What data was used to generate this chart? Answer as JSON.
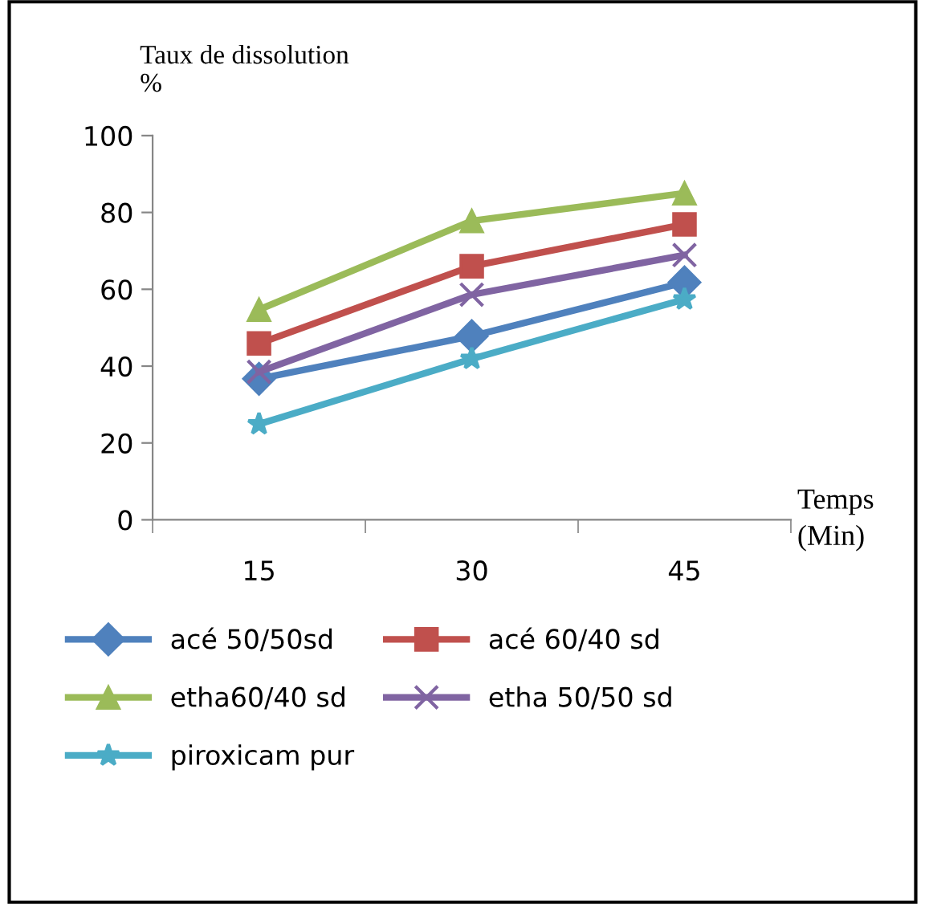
{
  "chart_data": {
    "type": "line",
    "ylabel": "Taux de dissolution\n%",
    "xlabel": "Temps\n(Min)",
    "categories": [
      "15",
      "30",
      "45"
    ],
    "ylim": [
      0,
      100
    ],
    "yticks": [
      0,
      20,
      40,
      60,
      80,
      100
    ],
    "grid": false,
    "legend": "bottom",
    "line_style": "solid",
    "series": [
      {
        "name": "acé 50/50sd",
        "color": "#4f81bd",
        "marker": "diamond",
        "values": [
          36.7,
          47.8,
          61.8
        ]
      },
      {
        "name": "acé 60/40 sd",
        "color": "#c0504d",
        "marker": "square",
        "values": [
          45.9,
          66,
          76.9
        ]
      },
      {
        "name": "etha60/40 sd",
        "color": "#9bbb59",
        "marker": "triangle",
        "values": [
          54.7,
          77.8,
          85
        ]
      },
      {
        "name": "etha 50/50 sd",
        "color": "#8064a2",
        "marker": "cross",
        "values": [
          38.5,
          58.6,
          68.9
        ]
      },
      {
        "name": "piroxicam pur",
        "color": "#4bacc6",
        "marker": "star",
        "values": [
          24.9,
          41.9,
          57.4
        ]
      }
    ]
  }
}
